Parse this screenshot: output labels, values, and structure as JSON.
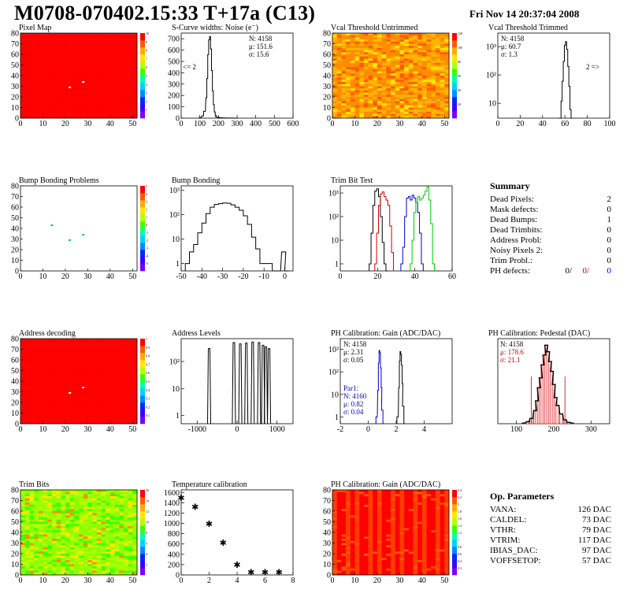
{
  "header": {
    "title": "M0708-070402.15:33 T+17a (C13)",
    "date": "Fri Nov 14 20:37:04 2008"
  },
  "summary": {
    "title": "Summary",
    "rows": [
      {
        "label": "Dead Pixels:",
        "value": "2"
      },
      {
        "label": "Mask defects:",
        "value": "0"
      },
      {
        "label": "Dead Bumps:",
        "value": "1"
      },
      {
        "label": "Dead Trimbits:",
        "value": "0"
      },
      {
        "label": "Address Probl:",
        "value": "0"
      },
      {
        "label": "Noisy Pixels 2:",
        "value": "0"
      },
      {
        "label": "Trim Probl.:",
        "value": "0"
      }
    ],
    "ph_defects": {
      "label": "PH defects:",
      "values": [
        "0/",
        "0/",
        "0"
      ],
      "colors": [
        "#000000",
        "#cc0000",
        "#0000cc"
      ]
    }
  },
  "op_parameters": {
    "title": "Op. Parameters",
    "rows": [
      {
        "label": "VANA:",
        "value": "126 DAC"
      },
      {
        "label": "CALDEL:",
        "value": "73 DAC"
      },
      {
        "label": "VTHR:",
        "value": "79 DAC"
      },
      {
        "label": "VTRIM:",
        "value": "117 DAC"
      },
      {
        "label": "IBIAS_DAC:",
        "value": "97 DAC"
      },
      {
        "label": "VOFFSETOP:",
        "value": "57 DAC"
      }
    ]
  },
  "chart_data": [
    {
      "id": "pixel-map",
      "type": "heatmap",
      "title": "Pixel Map",
      "x_ticks": [
        "0",
        "10",
        "20",
        "30",
        "40",
        "50"
      ],
      "y_ticks": [
        "0",
        "10",
        "20",
        "30",
        "40",
        "50",
        "60",
        "70",
        "80"
      ],
      "xlim": [
        0,
        52
      ],
      "ylim": [
        0,
        80
      ],
      "fill": "uniform-high",
      "defects": [
        {
          "x": 22,
          "y": 29
        },
        {
          "x": 28,
          "y": 34
        }
      ],
      "colorbar": [
        "1",
        "2",
        "3",
        "4",
        "5",
        "6",
        "7",
        "8",
        "9",
        "10"
      ]
    },
    {
      "id": "scurve-noise",
      "type": "line",
      "title": "S-Curve widths: Noise (e⁻)",
      "x_ticks": [
        "0",
        "100",
        "200",
        "300",
        "400",
        "500",
        "600"
      ],
      "y_ticks": [
        "0",
        "100",
        "200",
        "300",
        "400",
        "500",
        "600",
        "700"
      ],
      "xlim": [
        0,
        600
      ],
      "ylim": [
        0,
        750
      ],
      "stats": [
        "N: 4158",
        "μ: 151.6",
        "σ: 15.6"
      ],
      "annotation": "<= 2",
      "series": [
        {
          "x": [
            95,
            105,
            115,
            125,
            135,
            140,
            145,
            150,
            155,
            160,
            165,
            170,
            175,
            180,
            185,
            190,
            200,
            210,
            230,
            260,
            300
          ],
          "values": [
            0,
            5,
            20,
            60,
            180,
            350,
            560,
            690,
            720,
            610,
            420,
            240,
            120,
            55,
            25,
            10,
            6,
            4,
            2,
            1,
            0
          ]
        }
      ]
    },
    {
      "id": "vcal-untrimmed",
      "type": "heatmap",
      "title": "Vcal Threshold Untrimmed",
      "x_ticks": [
        "0",
        "10",
        "20",
        "30",
        "40",
        "50"
      ],
      "y_ticks": [
        "0",
        "10",
        "20",
        "30",
        "40",
        "50",
        "60",
        "70",
        "80"
      ],
      "xlim": [
        0,
        52
      ],
      "ylim": [
        0,
        80
      ],
      "fill": "noisy-orange",
      "colorbar": [
        "20",
        "40",
        "60",
        "80",
        "100",
        "120"
      ]
    },
    {
      "id": "vcal-trimmed",
      "type": "line",
      "title": "Vcal Threshold Trimmed",
      "log_y": true,
      "x_ticks": [
        "0",
        "20",
        "40",
        "60",
        "80",
        "100"
      ],
      "y_ticks": [
        "10",
        "10²",
        "10³"
      ],
      "xlim": [
        0,
        100
      ],
      "ylim": [
        3,
        3000
      ],
      "stats": [
        "N: 4158",
        "μ: 60.7",
        "σ: 1.3"
      ],
      "annotation": "2 =>",
      "series": [
        {
          "x": [
            55,
            56,
            57,
            58,
            59,
            60,
            61,
            62,
            63,
            64,
            65,
            66
          ],
          "values": [
            1,
            3,
            12,
            60,
            300,
            1100,
            1500,
            800,
            200,
            40,
            6,
            1
          ]
        }
      ]
    },
    {
      "id": "bump-problems",
      "type": "heatmap",
      "title": "Bump Bonding Problems",
      "x_ticks": [
        "0",
        "10",
        "20",
        "30",
        "40",
        "50"
      ],
      "y_ticks": [
        "0",
        "10",
        "20",
        "30",
        "40",
        "50",
        "60",
        "70",
        "80"
      ],
      "xlim": [
        0,
        52
      ],
      "ylim": [
        0,
        80
      ],
      "fill": "blank",
      "defects": [
        {
          "x": 14,
          "y": 43
        },
        {
          "x": 22,
          "y": 29
        },
        {
          "x": 28,
          "y": 34
        }
      ],
      "colorbar": [
        "-5",
        "-4",
        "-3",
        "-2",
        "-1",
        "0",
        "1",
        "2",
        "3",
        "4",
        "5"
      ]
    },
    {
      "id": "bump-bonding",
      "type": "line",
      "title": "Bump Bonding",
      "log_y": true,
      "x_ticks": [
        "-50",
        "-40",
        "-30",
        "-20",
        "-10",
        "0"
      ],
      "y_ticks": [
        "1",
        "10",
        "10²",
        "10³"
      ],
      "xlim": [
        -50,
        4
      ],
      "ylim": [
        0.5,
        1500
      ],
      "series": [
        {
          "x": [
            -47,
            -45,
            -43,
            -41,
            -39,
            -37,
            -35,
            -33,
            -31,
            -29,
            -27,
            -25,
            -23,
            -21,
            -19,
            -17,
            -15,
            -13,
            -11,
            -9,
            -7,
            -5,
            -3,
            -1,
            0,
            1
          ],
          "values": [
            1,
            3,
            6,
            18,
            45,
            110,
            200,
            260,
            280,
            300,
            290,
            250,
            200,
            150,
            90,
            40,
            12,
            4,
            1,
            1,
            1,
            0,
            0,
            3,
            3,
            0
          ]
        }
      ]
    },
    {
      "id": "trim-bit-test",
      "type": "line",
      "title": "Trim Bit Test",
      "log_y": true,
      "x_ticks": [
        "0",
        "20",
        "40",
        "60"
      ],
      "y_ticks": [
        "1",
        "10",
        "10²",
        "10³"
      ],
      "xlim": [
        0,
        60
      ],
      "ylim": [
        0.5,
        2000
      ],
      "series": [
        {
          "color": "#000000",
          "x": [
            16,
            17,
            18,
            19,
            20,
            21,
            22,
            23,
            24,
            25
          ],
          "values": [
            1,
            20,
            300,
            1200,
            1500,
            700,
            100,
            8,
            1,
            0
          ]
        },
        {
          "color": "#cc0000",
          "x": [
            19,
            20,
            21,
            22,
            23,
            24,
            25,
            26,
            27,
            28,
            29
          ],
          "values": [
            1,
            20,
            300,
            900,
            1100,
            700,
            500,
            300,
            40,
            3,
            0
          ]
        },
        {
          "color": "#0000cc",
          "x": [
            33,
            34,
            35,
            36,
            37,
            38,
            39,
            40,
            41,
            42,
            43,
            44
          ],
          "values": [
            1,
            5,
            100,
            600,
            700,
            500,
            800,
            600,
            400,
            150,
            20,
            1
          ]
        },
        {
          "color": "#00cc00",
          "x": [
            38,
            39,
            40,
            41,
            42,
            43,
            44,
            45,
            46,
            47,
            48,
            49,
            50
          ],
          "values": [
            1,
            10,
            150,
            400,
            700,
            500,
            600,
            800,
            1200,
            1800,
            500,
            50,
            1
          ]
        }
      ]
    },
    {
      "id": "address-decoding",
      "type": "heatmap",
      "title": "Address decoding",
      "x_ticks": [
        "0",
        "10",
        "20",
        "30",
        "40",
        "50"
      ],
      "y_ticks": [
        "0",
        "10",
        "20",
        "30",
        "40",
        "50",
        "60",
        "70",
        "80"
      ],
      "xlim": [
        0,
        52
      ],
      "ylim": [
        0,
        80
      ],
      "fill": "uniform-high",
      "defects": [
        {
          "x": 22,
          "y": 29
        },
        {
          "x": 28,
          "y": 34
        }
      ],
      "colorbar": [
        "0.1",
        "0.2",
        "0.3",
        "0.4",
        "0.5",
        "0.6",
        "0.7",
        "0.8",
        "0.9",
        "1"
      ]
    },
    {
      "id": "address-levels",
      "type": "line",
      "title": "Address Levels",
      "log_y": true,
      "x_ticks": [
        "-1000",
        "0",
        "1000"
      ],
      "y_ticks": [
        "1",
        "10",
        "10²"
      ],
      "xlim": [
        -1400,
        1400
      ],
      "ylim": [
        0.5,
        700
      ],
      "peaks": [
        -700,
        -80,
        80,
        230,
        390,
        550,
        650,
        720,
        800
      ],
      "peak_heights": [
        300,
        500,
        450,
        480,
        520,
        500,
        400,
        350,
        300
      ]
    },
    {
      "id": "ph-gain",
      "type": "line",
      "title": "PH Calibration: Gain (ADC/DAC)",
      "log_y": true,
      "x_ticks": [
        "-2",
        "0",
        "2",
        "4"
      ],
      "y_ticks": [
        "1",
        "10",
        "10²",
        "10³"
      ],
      "xlim": [
        -2,
        6
      ],
      "ylim": [
        0.5,
        3000
      ],
      "stats": [
        "N: 4158",
        "μ: 2.31",
        "σ: 0.05"
      ],
      "stats2_title": "Par1:",
      "stats2": [
        "N: 4160",
        "μ: 0.82",
        "σ: 0.04"
      ],
      "series": [
        {
          "color": "#000000",
          "x": [
            2.1,
            2.2,
            2.25,
            2.3,
            2.35,
            2.4,
            2.45,
            2.5,
            2.6
          ],
          "values": [
            1,
            20,
            300,
            800,
            600,
            200,
            30,
            3,
            0
          ]
        },
        {
          "color": "#0000cc",
          "x": [
            0.6,
            0.7,
            0.75,
            0.8,
            0.85,
            0.9,
            0.95,
            1.0,
            1.1
          ],
          "values": [
            1,
            15,
            250,
            900,
            700,
            150,
            20,
            2,
            0
          ]
        }
      ]
    },
    {
      "id": "ph-pedestal",
      "type": "bar",
      "title": "PH Calibration: Pedestal (DAC)",
      "x_ticks": [
        "100",
        "200",
        "300"
      ],
      "xlim": [
        50,
        350
      ],
      "ylim": [
        0,
        130
      ],
      "stats": [
        "N: 4158",
        "μ: 178.6",
        "σ: 21.1"
      ],
      "series": [
        {
          "x": [
            120,
            130,
            140,
            150,
            155,
            160,
            165,
            170,
            175,
            180,
            185,
            190,
            195,
            200,
            205,
            210,
            220,
            230,
            240,
            250
          ],
          "values": [
            1,
            3,
            8,
            20,
            35,
            55,
            70,
            90,
            105,
            120,
            110,
            95,
            80,
            60,
            40,
            28,
            15,
            6,
            2,
            1
          ]
        }
      ]
    },
    {
      "id": "trim-bits",
      "type": "heatmap",
      "title": "Trim Bits",
      "x_ticks": [
        "0",
        "10",
        "20",
        "30",
        "40",
        "50"
      ],
      "y_ticks": [
        "0",
        "10",
        "20",
        "30",
        "40",
        "50",
        "60",
        "70",
        "80"
      ],
      "xlim": [
        0,
        52
      ],
      "ylim": [
        0,
        80
      ],
      "fill": "noisy-green",
      "colorbar": [
        "2",
        "4",
        "6",
        "8",
        "10",
        "12",
        "14",
        "16"
      ]
    },
    {
      "id": "temp-calibration",
      "type": "scatter",
      "title": "Temperature calibration",
      "x_ticks": [
        "0",
        "2",
        "4",
        "6",
        "8"
      ],
      "y_ticks": [
        "0",
        "200",
        "400",
        "600",
        "800",
        "1000",
        "1200",
        "1400",
        "1600"
      ],
      "xlim": [
        0,
        8
      ],
      "ylim": [
        0,
        1650
      ],
      "series": [
        {
          "x": [
            0,
            1,
            2,
            3,
            4,
            5,
            6,
            7
          ],
          "values": [
            1500,
            1320,
            990,
            630,
            200,
            50,
            50,
            50
          ]
        }
      ]
    },
    {
      "id": "ph-gain-map",
      "type": "heatmap",
      "title": "PH Calibration: Gain (ADC/DAC)",
      "x_ticks": [
        "0",
        "10",
        "20",
        "30",
        "40",
        "50"
      ],
      "y_ticks": [
        "0",
        "10",
        "20",
        "30",
        "40",
        "50",
        "60",
        "70",
        "80"
      ],
      "xlim": [
        0,
        52
      ],
      "ylim": [
        0,
        80
      ],
      "fill": "column-red",
      "colorbar": [
        "0.2",
        "0.4",
        "0.6",
        "0.8",
        "1",
        "1.2",
        "1.4",
        "1.6",
        "1.8",
        "2",
        "2.2",
        "2.4"
      ]
    }
  ]
}
